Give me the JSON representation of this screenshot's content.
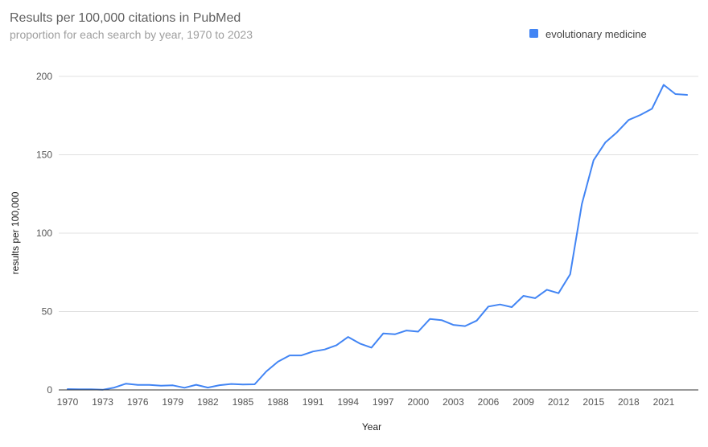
{
  "chart_data": {
    "type": "line",
    "title": "Results per 100,000 citations in PubMed",
    "subtitle": "proportion for each search by year, 1970 to 2023",
    "xlabel": "Year",
    "ylabel": "results per 100,000",
    "ylim": [
      0,
      200
    ],
    "yticks": [
      0,
      50,
      100,
      150,
      200
    ],
    "xlim": [
      1970,
      2023
    ],
    "xticks": [
      1970,
      1973,
      1976,
      1979,
      1982,
      1985,
      1988,
      1991,
      1994,
      1997,
      2000,
      2003,
      2006,
      2009,
      2012,
      2015,
      2018,
      2021
    ],
    "legend_position": "top-right",
    "series": [
      {
        "name": "evolutionary medicine",
        "color": "#4285f4",
        "x": [
          1970,
          1971,
          1972,
          1973,
          1974,
          1975,
          1976,
          1977,
          1978,
          1979,
          1980,
          1981,
          1982,
          1983,
          1984,
          1985,
          1986,
          1987,
          1988,
          1989,
          1990,
          1991,
          1992,
          1993,
          1994,
          1995,
          1996,
          1997,
          1998,
          1999,
          2000,
          2001,
          2002,
          2003,
          2004,
          2005,
          2006,
          2007,
          2008,
          2009,
          2010,
          2011,
          2012,
          2013,
          2014,
          2015,
          2016,
          2017,
          2018,
          2019,
          2020,
          2021,
          2022,
          2023
        ],
        "values": [
          0.5,
          0.4,
          0.4,
          0.1,
          1.5,
          4.0,
          3.2,
          3.2,
          2.7,
          2.9,
          1.4,
          3.3,
          1.5,
          3.0,
          3.8,
          3.5,
          3.6,
          11.8,
          18.0,
          22.0,
          22.0,
          24.5,
          25.8,
          28.5,
          33.8,
          29.6,
          27.0,
          36.0,
          35.5,
          37.9,
          37.2,
          45.3,
          44.5,
          41.5,
          40.7,
          44.2,
          53.2,
          54.5,
          52.8,
          60.0,
          58.5,
          63.9,
          61.7,
          73.8,
          118.5,
          146.5,
          157.8,
          164.3,
          172.2,
          175.4,
          179.4,
          194.6,
          188.7,
          188.2
        ]
      }
    ]
  }
}
